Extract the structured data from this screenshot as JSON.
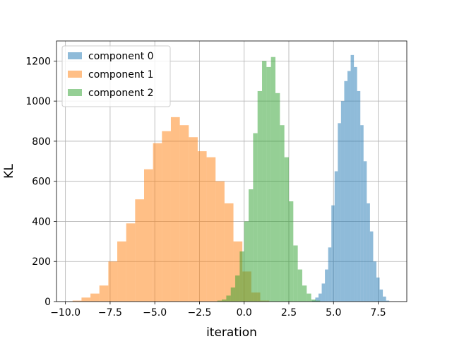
{
  "chart_data": {
    "type": "histogram",
    "xlabel": "iteration",
    "ylabel": "KL",
    "xlim": [
      -10.5,
      9.1
    ],
    "ylim": [
      0,
      1300
    ],
    "xticks": [
      -10.0,
      -7.5,
      -5.0,
      -2.5,
      0.0,
      2.5,
      5.0,
      7.5
    ],
    "xtick_labels": [
      "−10.0",
      "−7.5",
      "−5.0",
      "−2.5",
      "0.0",
      "2.5",
      "5.0",
      "7.5"
    ],
    "yticks": [
      0,
      200,
      400,
      600,
      800,
      1000,
      1200
    ],
    "ytick_labels": [
      "0",
      "200",
      "400",
      "600",
      "800",
      "1000",
      "1200"
    ],
    "grid": true,
    "legend_position": "upper-left",
    "series": [
      {
        "name": "component 0",
        "color": "#1f77b4",
        "opacity": 0.5,
        "bin_start": 3.8,
        "bin_width": 0.18,
        "counts": [
          5,
          20,
          40,
          90,
          160,
          270,
          480,
          650,
          890,
          1000,
          1100,
          1150,
          1230,
          1170,
          1050,
          880,
          700,
          490,
          350,
          200,
          120,
          60,
          25,
          5
        ]
      },
      {
        "name": "component 1",
        "color": "#ff7f0e",
        "opacity": 0.5,
        "bin_start": -9.6,
        "bin_width": 0.5,
        "counts": [
          5,
          20,
          40,
          80,
          200,
          300,
          390,
          510,
          660,
          790,
          850,
          920,
          880,
          820,
          750,
          720,
          600,
          490,
          300,
          150,
          45,
          5
        ]
      },
      {
        "name": "component 2",
        "color": "#2ca02c",
        "opacity": 0.5,
        "bin_start": -1.5,
        "bin_width": 0.25,
        "counts": [
          5,
          10,
          30,
          70,
          130,
          250,
          400,
          560,
          840,
          1050,
          1200,
          1170,
          1220,
          1040,
          880,
          720,
          500,
          280,
          160,
          80,
          40,
          10,
          5
        ]
      }
    ]
  }
}
